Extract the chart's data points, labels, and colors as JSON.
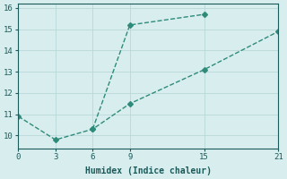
{
  "xlabel": "Humidex (Indice chaleur)",
  "ylabel": "",
  "line1_x": [
    0,
    3,
    6,
    9,
    15,
    21
  ],
  "line1_y": [
    10.9,
    9.8,
    10.3,
    11.5,
    13.1,
    14.9
  ],
  "line2_x": [
    6,
    9,
    15
  ],
  "line2_y": [
    10.3,
    15.2,
    15.7
  ],
  "xlim": [
    0,
    21
  ],
  "ylim": [
    9.4,
    16.2
  ],
  "xticks": [
    0,
    3,
    6,
    9,
    15,
    21
  ],
  "yticks": [
    10,
    11,
    12,
    13,
    14,
    15,
    16
  ],
  "line_color": "#2e8b7a",
  "marker": "D",
  "marker_size": 3,
  "bg_color": "#d8eeee",
  "grid_color": "#b8d8d8",
  "axis_color": "#1a5a5a",
  "label_fontsize": 7,
  "tick_fontsize": 6.5
}
